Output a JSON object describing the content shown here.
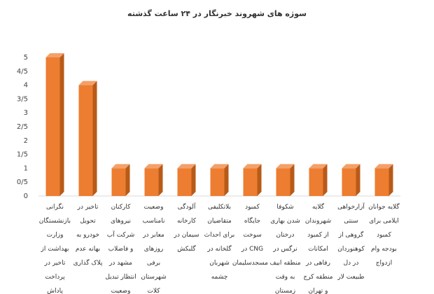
{
  "chart_data": {
    "type": "bar3d",
    "title": "سوژه های شهروند خبرنگار در ۲۴ ساعت گذشته",
    "categories": [
      "نگرانی بازنشستگان وزارت بهداشت از تاخیر در پرداخت پاداش",
      "تاخیر در تحویل خودرو به بهانه عدم پلاک گذاری",
      "کارکنان نیروهای شرکت آب و فاضلاب مشهد در انتظار تبدیل وضعیت",
      "وضعیت نامناسب معابر در روزهای برفی شهرستان کلات",
      "آلودگی کارخانه سیمان در گلبکش",
      "بلاتکلیفی متقاضیان برای احداث گلخانه در شهربان چشمه",
      "کمبود جایگاه سوخت CNG در مسجدسلیمان",
      "شکوفا شدن بهاری درختان نرگس در منطقه ابیف به وقت زمستان",
      "گلایه شهروندان از کمبود امکانات رفاهی در منطقه کرج و تهران",
      "آزارخواهی سنتی گروهی از کوهنوردان در دل طبیعت لار",
      "گلایه جوانان ایلامی برای کمبود بودجه وام ازدواج"
    ],
    "values": [
      5,
      4,
      1,
      1,
      1,
      1,
      1,
      1,
      1,
      1,
      1
    ],
    "color": "#ed7d31",
    "top_color": "#f4a069",
    "side_color": "#b85a18",
    "ylim": [
      0,
      5
    ],
    "yticks": [
      0,
      {
        "value": 0.5,
        "label": "0/5"
      },
      1,
      {
        "value": 1.5,
        "label": "1/5"
      },
      2,
      {
        "value": 2.5,
        "label": "2/5"
      },
      3,
      {
        "value": 3.5,
        "label": "3/5"
      },
      4,
      {
        "value": 4.5,
        "label": "4/5"
      },
      5
    ],
    "grid": false
  }
}
